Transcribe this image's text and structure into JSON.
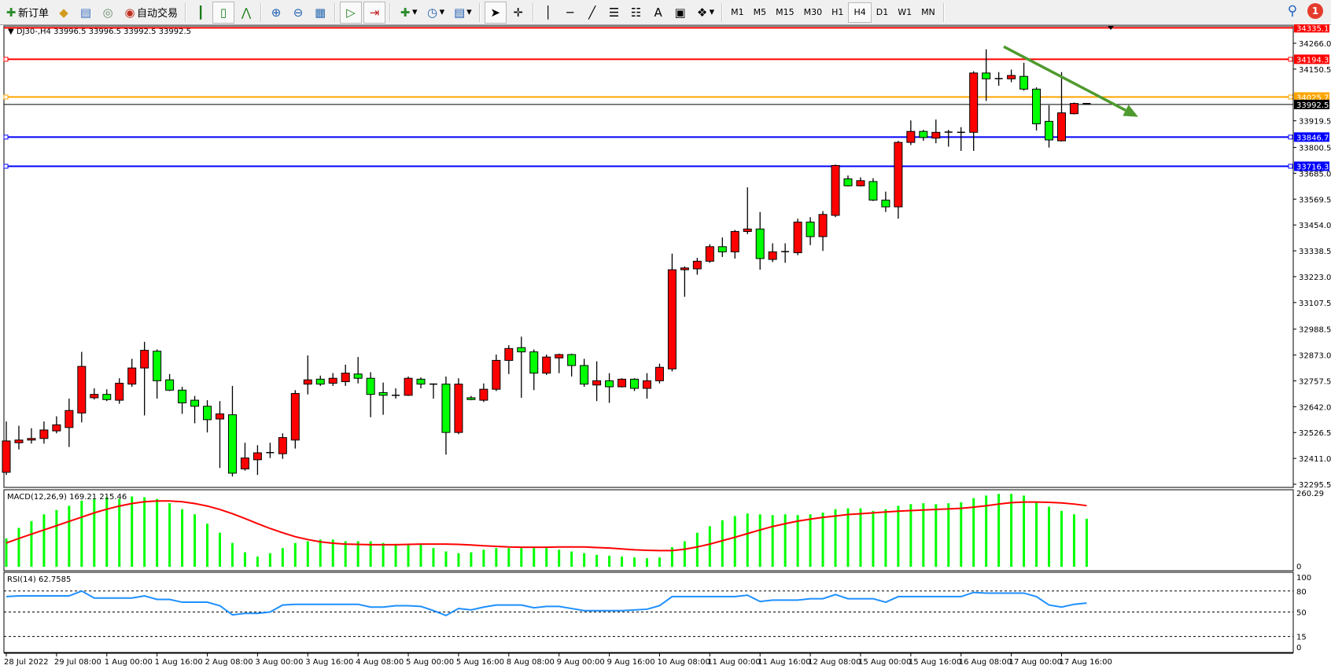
{
  "toolbar": {
    "new_order_label": "新订单",
    "auto_trade_label": "自动交易",
    "icons": [
      "new-order-icon",
      "market-watch-icon",
      "navigator-icon",
      "signals-icon",
      "auto-trade-icon",
      "bar-chart-icon",
      "candlestick-icon",
      "line-chart-icon",
      "zoom-in-icon",
      "zoom-out-icon",
      "tile-windows-icon",
      "auto-scroll-icon",
      "chart-shift-icon",
      "indicators-icon",
      "periods-icon",
      "templates-icon",
      "cursor-icon",
      "crosshair-icon",
      "vertical-line-icon",
      "horizontal-line-icon",
      "trendline-icon",
      "fibonacci-icon",
      "fibo-fan-icon",
      "text-icon",
      "text-label-icon",
      "arrows-icon"
    ],
    "text_tool_label": "A",
    "periods": [
      "M1",
      "M5",
      "M15",
      "M30",
      "H1",
      "H4",
      "D1",
      "W1",
      "MN"
    ],
    "active_period": "H4",
    "notification_count": "1"
  },
  "chart_data": {
    "type": "candlestick",
    "symbol_header": "DJ30-,H4  33996.5 33996.5 33992.5 33992.5",
    "up_color": "#ff0000",
    "down_color": "#00ff00",
    "ylim": [
      32270,
      34345
    ],
    "price_ticks": [
      "34266.0",
      "34150.5",
      "33919.5",
      "33800.5",
      "33685.0",
      "33569.5",
      "33454.0",
      "33338.5",
      "33223.0",
      "33107.5",
      "32988.5",
      "32873.0",
      "32757.5",
      "32642.0",
      "32526.5",
      "32411.0",
      "32295.5"
    ],
    "horizontal_lines": [
      {
        "price": 34335.1,
        "label": "34335.1",
        "color": "#ff0000"
      },
      {
        "price": 34194.3,
        "label": "34194.3",
        "color": "#ff0000"
      },
      {
        "price": 34025.7,
        "label": "34025.7",
        "color": "#ffa500"
      },
      {
        "price": 33992.5,
        "label": "33992.5",
        "color": "#000000"
      },
      {
        "price": 33846.7,
        "label": "33846.7",
        "color": "#0000ff"
      },
      {
        "price": 33716.3,
        "label": "33716.3",
        "color": "#0000ff"
      }
    ],
    "trend_arrow": {
      "from": [
        79.4,
        34251
      ],
      "to": [
        90.1,
        33937
      ],
      "color": "#4e9a2e"
    },
    "time_labels": [
      {
        "bar": 0,
        "text": "28 Jul 2022"
      },
      {
        "bar": 4,
        "text": "29 Jul 08:00"
      },
      {
        "bar": 8,
        "text": "1 Aug 00:00"
      },
      {
        "bar": 12,
        "text": "1 Aug 16:00"
      },
      {
        "bar": 16,
        "text": "2 Aug 08:00"
      },
      {
        "bar": 20,
        "text": "3 Aug 00:00"
      },
      {
        "bar": 24,
        "text": "3 Aug 16:00"
      },
      {
        "bar": 28,
        "text": "4 Aug 08:00"
      },
      {
        "bar": 32,
        "text": "5 Aug 00:00"
      },
      {
        "bar": 36,
        "text": "5 Aug 16:00"
      },
      {
        "bar": 40,
        "text": "8 Aug 08:00"
      },
      {
        "bar": 44,
        "text": "9 Aug 00:00"
      },
      {
        "bar": 48,
        "text": "9 Aug 16:00"
      },
      {
        "bar": 52,
        "text": "10 Aug 08:00"
      },
      {
        "bar": 56,
        "text": "11 Aug 00:00"
      },
      {
        "bar": 60,
        "text": "11 Aug 16:00"
      },
      {
        "bar": 64,
        "text": "12 Aug 08:00"
      },
      {
        "bar": 68,
        "text": "15 Aug 00:00"
      },
      {
        "bar": 72,
        "text": "15 Aug 16:00"
      },
      {
        "bar": 76,
        "text": "16 Aug 08:00"
      },
      {
        "bar": 80,
        "text": "17 Aug 00:00"
      },
      {
        "bar": 84,
        "text": "17 Aug 16:00"
      }
    ],
    "ohlc": [
      [
        32349,
        32576,
        32337,
        32489
      ],
      [
        32481,
        32557,
        32451,
        32493
      ],
      [
        32493,
        32546,
        32477,
        32500
      ],
      [
        32500,
        32576,
        32477,
        32538
      ],
      [
        32534,
        32599,
        32523,
        32561
      ],
      [
        32549,
        32678,
        32462,
        32625
      ],
      [
        32614,
        32887,
        32572,
        32822
      ],
      [
        32682,
        32724,
        32674,
        32697
      ],
      [
        32697,
        32720,
        32667,
        32674
      ],
      [
        32671,
        32769,
        32655,
        32747
      ],
      [
        32743,
        32856,
        32731,
        32815
      ],
      [
        32815,
        32932,
        32603,
        32894
      ],
      [
        32890,
        32898,
        32678,
        32758
      ],
      [
        32762,
        32788,
        32712,
        32716
      ],
      [
        32716,
        32731,
        32610,
        32659
      ],
      [
        32671,
        32690,
        32568,
        32644
      ],
      [
        32644,
        32671,
        32527,
        32584
      ],
      [
        32587,
        32667,
        32368,
        32610
      ],
      [
        32606,
        32735,
        32330,
        32345
      ],
      [
        32364,
        32481,
        32356,
        32413
      ],
      [
        32405,
        32470,
        32337,
        32436
      ],
      [
        32436,
        32481,
        32413,
        32437
      ],
      [
        32432,
        32523,
        32409,
        32504
      ],
      [
        32493,
        32716,
        32455,
        32701
      ],
      [
        32743,
        32871,
        32697,
        32762
      ],
      [
        32765,
        32781,
        32735,
        32743
      ],
      [
        32747,
        32792,
        32735,
        32769
      ],
      [
        32754,
        32830,
        32735,
        32792
      ],
      [
        32788,
        32864,
        32746,
        32769
      ],
      [
        32769,
        32796,
        32595,
        32697
      ],
      [
        32705,
        32750,
        32606,
        32693
      ],
      [
        32693,
        32724,
        32678,
        32690
      ],
      [
        32693,
        32777,
        32690,
        32769
      ],
      [
        32765,
        32773,
        32724,
        32743
      ],
      [
        32743,
        32746,
        32678,
        32742
      ],
      [
        32743,
        32777,
        32428,
        32527
      ],
      [
        32527,
        32769,
        32519,
        32743
      ],
      [
        32682,
        32690,
        32671,
        32674
      ],
      [
        32671,
        32746,
        32663,
        32720
      ],
      [
        32720,
        32875,
        32712,
        32849
      ],
      [
        32849,
        32917,
        32788,
        32902
      ],
      [
        32906,
        32955,
        32682,
        32887
      ],
      [
        32887,
        32898,
        32716,
        32792
      ],
      [
        32792,
        32875,
        32784,
        32864
      ],
      [
        32860,
        32879,
        32792,
        32875
      ],
      [
        32875,
        32879,
        32777,
        32826
      ],
      [
        32826,
        32856,
        32731,
        32743
      ],
      [
        32739,
        32845,
        32667,
        32758
      ],
      [
        32758,
        32792,
        32659,
        32731
      ],
      [
        32731,
        32769,
        32728,
        32765
      ],
      [
        32765,
        32769,
        32712,
        32724
      ],
      [
        32724,
        32792,
        32678,
        32758
      ],
      [
        32758,
        32834,
        32746,
        32818
      ],
      [
        32811,
        33326,
        32800,
        33254
      ],
      [
        33254,
        33269,
        33133,
        33262
      ],
      [
        33258,
        33307,
        33232,
        33292
      ],
      [
        33292,
        33368,
        33285,
        33357
      ],
      [
        33357,
        33398,
        33311,
        33334
      ],
      [
        33334,
        33432,
        33304,
        33425
      ],
      [
        33425,
        33622,
        33413,
        33436
      ],
      [
        33436,
        33512,
        33254,
        33304
      ],
      [
        33300,
        33372,
        33288,
        33334
      ],
      [
        33334,
        33372,
        33285,
        33335
      ],
      [
        33330,
        33482,
        33319,
        33467
      ],
      [
        33467,
        33489,
        33364,
        33402
      ],
      [
        33402,
        33516,
        33338,
        33501
      ],
      [
        33497,
        33724,
        33489,
        33720
      ],
      [
        33660,
        33675,
        33626,
        33629
      ],
      [
        33629,
        33667,
        33626,
        33652
      ],
      [
        33648,
        33663,
        33561,
        33565
      ],
      [
        33565,
        33603,
        33512,
        33535
      ],
      [
        33535,
        33830,
        33482,
        33823
      ],
      [
        33823,
        33921,
        33811,
        33872
      ],
      [
        33872,
        33879,
        33830,
        33845
      ],
      [
        33842,
        33925,
        33819,
        33868
      ],
      [
        33868,
        33879,
        33804,
        33869
      ],
      [
        33868,
        33891,
        33785,
        33867
      ],
      [
        33868,
        34141,
        33785,
        34133
      ],
      [
        34133,
        34239,
        34008,
        34107
      ],
      [
        34107,
        34137,
        34076,
        34108
      ],
      [
        34107,
        34148,
        34092,
        34122
      ],
      [
        34118,
        34179,
        34054,
        34061
      ],
      [
        34061,
        34069,
        33876,
        33906
      ],
      [
        33917,
        33989,
        33800,
        33834
      ],
      [
        33830,
        34137,
        33827,
        33955
      ],
      [
        33951,
        34001,
        33948,
        33997
      ],
      [
        33996.5,
        33996.5,
        33992.5,
        33992.5
      ]
    ],
    "macd": {
      "label": "MACD(12,26,9) 169.21 215.46",
      "ylim": [
        0,
        260.29
      ],
      "tick_labels": [
        "260.29",
        "0"
      ],
      "hist_color": "#00ff00",
      "signal_color": "#ff0000",
      "histogram": [
        100,
        137,
        161,
        185,
        200,
        215,
        233,
        239,
        245,
        239,
        248,
        245,
        239,
        224,
        203,
        185,
        152,
        120,
        84,
        51,
        36,
        48,
        66,
        84,
        90,
        96,
        96,
        90,
        90,
        90,
        84,
        81,
        81,
        81,
        66,
        54,
        48,
        51,
        60,
        66,
        66,
        66,
        66,
        66,
        60,
        54,
        48,
        42,
        39,
        36,
        33,
        30,
        33,
        69,
        90,
        120,
        143,
        164,
        179,
        188,
        185,
        182,
        185,
        182,
        185,
        191,
        203,
        206,
        206,
        197,
        203,
        215,
        221,
        224,
        221,
        224,
        227,
        242,
        251,
        257,
        257,
        251,
        230,
        212,
        197,
        185,
        169.21
      ],
      "signal": [
        84,
        100,
        115,
        130,
        145,
        160,
        175,
        190,
        203,
        214,
        223,
        229,
        232,
        232,
        229,
        223,
        214,
        202,
        187,
        170,
        152,
        135,
        120,
        106,
        96,
        88,
        83,
        80,
        79,
        78,
        78,
        78,
        79,
        80,
        80,
        80,
        79,
        77,
        74,
        72,
        70,
        69,
        69,
        69,
        70,
        70,
        70,
        68,
        66,
        63,
        60,
        58,
        57,
        57,
        62,
        70,
        80,
        92,
        104,
        117,
        130,
        142,
        152,
        161,
        168,
        174,
        179,
        184,
        187,
        190,
        193,
        196,
        198,
        200,
        202,
        204,
        206,
        210,
        215,
        221,
        226,
        228,
        228,
        227,
        225,
        221,
        215.46
      ]
    },
    "rsi": {
      "label": "RSI(14) 62.7585",
      "ylim": [
        0,
        100
      ],
      "levels": [
        80,
        50,
        15
      ],
      "tick_labels": [
        "100",
        "80",
        "50",
        "15",
        "0"
      ],
      "color": "#1e90ff",
      "values": [
        72,
        73,
        73,
        73,
        73,
        73,
        80,
        70,
        70,
        70,
        70,
        73,
        68,
        68,
        64,
        64,
        64,
        59,
        46,
        48,
        48,
        50,
        60,
        61,
        61,
        61,
        61,
        61,
        61,
        57,
        57,
        59,
        59,
        58,
        52,
        45,
        55,
        53,
        57,
        60,
        60,
        60,
        56,
        58,
        58,
        55,
        52,
        52,
        52,
        52,
        53,
        54,
        59,
        72,
        72,
        72,
        72,
        72,
        72,
        74,
        65,
        67,
        67,
        67,
        69,
        69,
        75,
        69,
        69,
        69,
        64,
        72,
        72,
        72,
        72,
        72,
        72,
        78,
        77,
        77,
        77,
        77,
        72,
        60,
        57,
        61,
        62.7585
      ]
    }
  }
}
